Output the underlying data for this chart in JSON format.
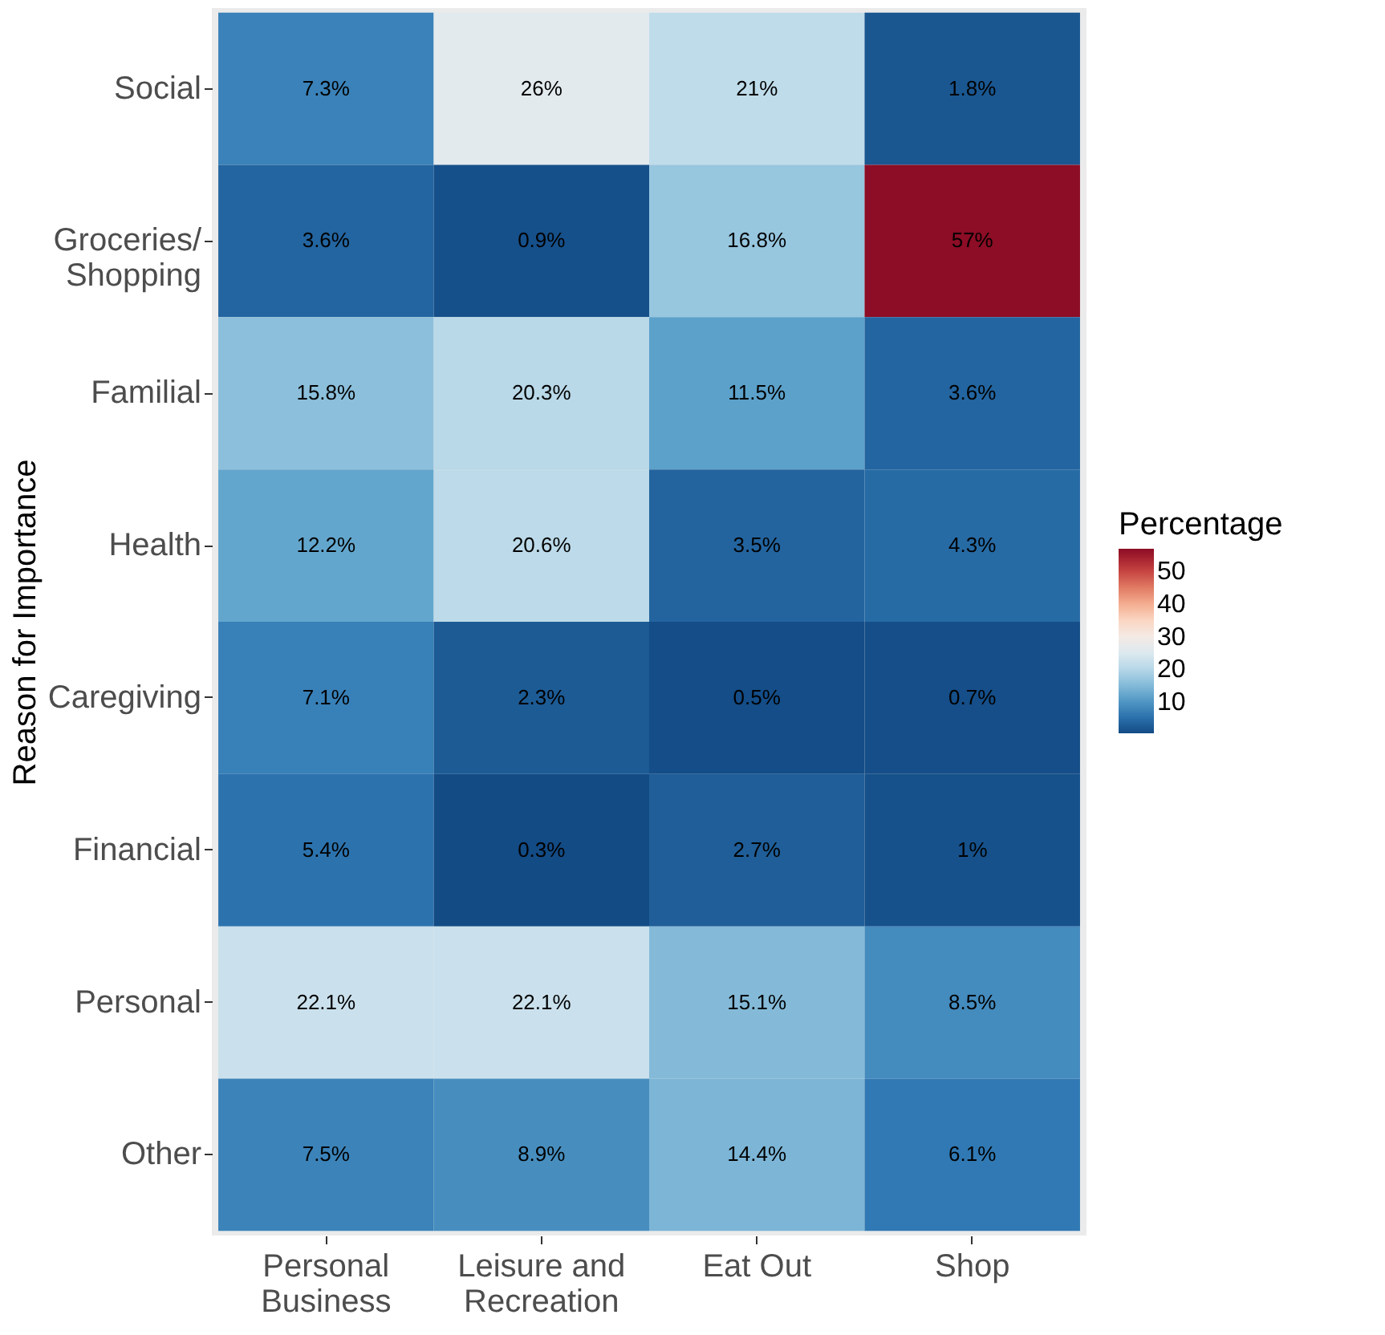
{
  "chart_data": {
    "type": "heatmap",
    "ylabel": "Reason for Importance",
    "legend_title": "Percentage",
    "categories": [
      "Personal\nBusiness",
      "Leisure and\nRecreation",
      "Eat Out",
      "Shop"
    ],
    "y_categories": [
      "Social",
      "Groceries/\nShopping",
      "Familial",
      "Health",
      "Caregiving",
      "Financial",
      "Personal",
      "Other"
    ],
    "cells": [
      [
        7.3,
        26,
        21,
        1.8
      ],
      [
        3.6,
        0.9,
        16.8,
        57
      ],
      [
        15.8,
        20.3,
        11.5,
        3.6
      ],
      [
        12.2,
        20.6,
        3.5,
        4.3
      ],
      [
        7.1,
        2.3,
        0.5,
        0.7
      ],
      [
        5.4,
        0.3,
        2.7,
        1
      ],
      [
        22.1,
        22.1,
        15.1,
        8.5
      ],
      [
        7.5,
        8.9,
        14.4,
        6.1
      ]
    ],
    "cell_labels": [
      [
        "7.3%",
        "26%",
        "21%",
        "1.8%"
      ],
      [
        "3.6%",
        "0.9%",
        "16.8%",
        "57%"
      ],
      [
        "15.8%",
        "20.3%",
        "11.5%",
        "3.6%"
      ],
      [
        "12.2%",
        "20.6%",
        "3.5%",
        "4.3%"
      ],
      [
        "7.1%",
        "2.3%",
        "0.5%",
        "0.7%"
      ],
      [
        "5.4%",
        "0.3%",
        "2.7%",
        "1%"
      ],
      [
        "22.1%",
        "22.1%",
        "15.1%",
        "8.5%"
      ],
      [
        "7.5%",
        "8.9%",
        "14.4%",
        "6.1%"
      ]
    ],
    "clim": [
      0.3,
      57
    ],
    "cticks": [
      10,
      20,
      30,
      40,
      50
    ]
  }
}
